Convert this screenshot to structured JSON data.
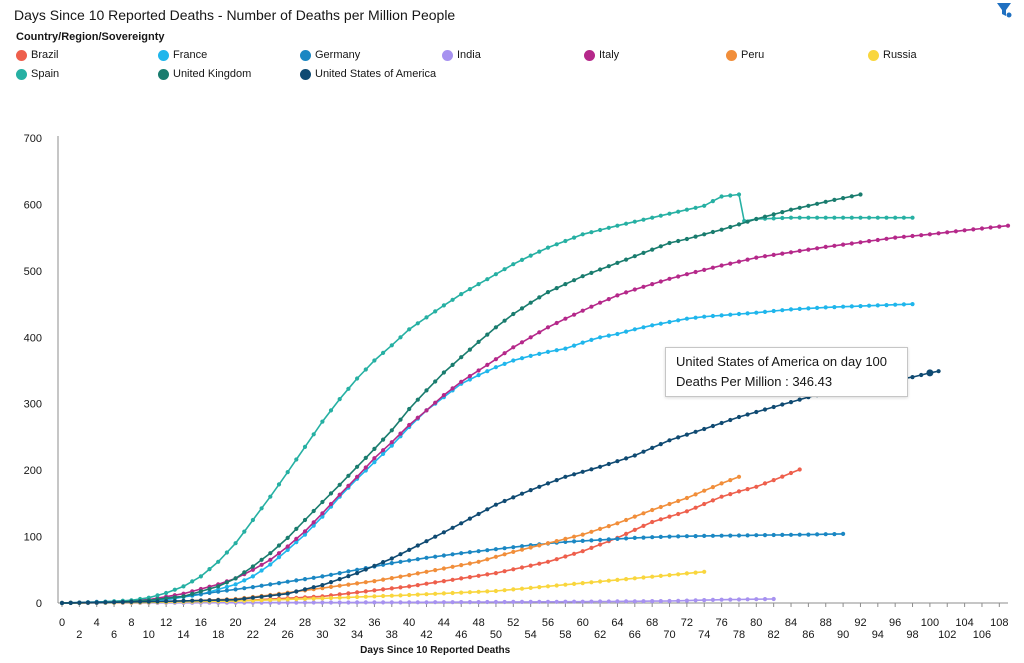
{
  "title": "Days Since 10 Reported Deaths - Number of Deaths per Million People",
  "legend_title": "Country/Region/Sovereignty",
  "tooltip": {
    "line1": "United States of America on day 100",
    "line2": "Deaths Per Million : 346.43"
  },
  "chart_data": {
    "type": "line",
    "title": "Days Since 10 Reported Deaths - Number of Deaths per Million People",
    "xlabel": "Days Since 10 Reported Deaths",
    "ylabel": "",
    "xlim": [
      0,
      109
    ],
    "ylim": [
      0,
      700
    ],
    "yticks": [
      0,
      100,
      200,
      300,
      400,
      500,
      600,
      700
    ],
    "xticks": [
      0,
      2,
      4,
      6,
      8,
      10,
      12,
      14,
      16,
      18,
      20,
      22,
      24,
      26,
      28,
      30,
      32,
      34,
      36,
      38,
      40,
      42,
      44,
      46,
      48,
      50,
      52,
      54,
      56,
      58,
      60,
      62,
      64,
      66,
      68,
      70,
      72,
      74,
      76,
      78,
      80,
      82,
      84,
      86,
      88,
      90,
      92,
      94,
      96,
      98,
      100,
      102,
      104,
      106,
      108
    ],
    "series": [
      {
        "name": "Brazil",
        "color": "#ee5f4c",
        "points": [
          [
            0,
            0
          ],
          [
            10,
            1
          ],
          [
            20,
            3
          ],
          [
            30,
            10
          ],
          [
            40,
            25
          ],
          [
            50,
            45
          ],
          [
            56,
            62
          ],
          [
            60,
            78
          ],
          [
            64,
            98
          ],
          [
            68,
            122
          ],
          [
            72,
            138
          ],
          [
            76,
            160
          ],
          [
            78,
            168
          ],
          [
            80,
            175
          ],
          [
            82,
            185
          ],
          [
            85,
            201
          ]
        ]
      },
      {
        "name": "France",
        "color": "#1fb6ec",
        "points": [
          [
            0,
            0
          ],
          [
            8,
            2
          ],
          [
            12,
            5
          ],
          [
            16,
            13
          ],
          [
            20,
            28
          ],
          [
            22,
            40
          ],
          [
            24,
            58
          ],
          [
            26,
            80
          ],
          [
            28,
            103
          ],
          [
            30,
            130
          ],
          [
            32,
            160
          ],
          [
            34,
            187
          ],
          [
            36,
            212
          ],
          [
            38,
            237
          ],
          [
            40,
            265
          ],
          [
            42,
            290
          ],
          [
            44,
            310
          ],
          [
            46,
            330
          ],
          [
            48,
            343
          ],
          [
            50,
            355
          ],
          [
            52,
            365
          ],
          [
            54,
            372
          ],
          [
            56,
            378
          ],
          [
            58,
            383
          ],
          [
            60,
            392
          ],
          [
            62,
            400
          ],
          [
            64,
            405
          ],
          [
            66,
            412
          ],
          [
            68,
            418
          ],
          [
            70,
            423
          ],
          [
            72,
            428
          ],
          [
            74,
            431
          ],
          [
            76,
            433
          ],
          [
            80,
            437
          ],
          [
            84,
            442
          ],
          [
            88,
            445
          ],
          [
            92,
            447
          ],
          [
            96,
            449
          ],
          [
            98,
            450
          ]
        ]
      },
      {
        "name": "Germany",
        "color": "#1a87c3",
        "points": [
          [
            0,
            0
          ],
          [
            5,
            2
          ],
          [
            10,
            5
          ],
          [
            14,
            10
          ],
          [
            18,
            17
          ],
          [
            22,
            24
          ],
          [
            26,
            32
          ],
          [
            30,
            40
          ],
          [
            34,
            50
          ],
          [
            38,
            60
          ],
          [
            42,
            68
          ],
          [
            46,
            75
          ],
          [
            50,
            81
          ],
          [
            54,
            87
          ],
          [
            58,
            92
          ],
          [
            62,
            95
          ],
          [
            66,
            98
          ],
          [
            70,
            100
          ],
          [
            74,
            101
          ],
          [
            80,
            102
          ],
          [
            86,
            103
          ],
          [
            90,
            104
          ]
        ]
      },
      {
        "name": "India",
        "color": "#a792f0",
        "points": [
          [
            0,
            0
          ],
          [
            20,
            0.5
          ],
          [
            40,
            1
          ],
          [
            60,
            2
          ],
          [
            70,
            3
          ],
          [
            76,
            5
          ],
          [
            82,
            6
          ]
        ]
      },
      {
        "name": "Italy",
        "color": "#b5288a",
        "points": [
          [
            0,
            0
          ],
          [
            6,
            1
          ],
          [
            10,
            5
          ],
          [
            14,
            14
          ],
          [
            18,
            28
          ],
          [
            20,
            37
          ],
          [
            22,
            50
          ],
          [
            24,
            65
          ],
          [
            26,
            85
          ],
          [
            28,
            108
          ],
          [
            30,
            135
          ],
          [
            32,
            163
          ],
          [
            34,
            190
          ],
          [
            36,
            218
          ],
          [
            38,
            242
          ],
          [
            40,
            268
          ],
          [
            42,
            290
          ],
          [
            44,
            313
          ],
          [
            46,
            333
          ],
          [
            48,
            350
          ],
          [
            50,
            367
          ],
          [
            52,
            385
          ],
          [
            54,
            400
          ],
          [
            56,
            415
          ],
          [
            58,
            428
          ],
          [
            60,
            440
          ],
          [
            62,
            452
          ],
          [
            64,
            463
          ],
          [
            66,
            472
          ],
          [
            68,
            480
          ],
          [
            70,
            488
          ],
          [
            72,
            495
          ],
          [
            76,
            508
          ],
          [
            80,
            520
          ],
          [
            84,
            528
          ],
          [
            88,
            536
          ],
          [
            92,
            543
          ],
          [
            96,
            550
          ],
          [
            100,
            555
          ],
          [
            104,
            561
          ],
          [
            109,
            568
          ]
        ]
      },
      {
        "name": "Peru",
        "color": "#f18e3a",
        "points": [
          [
            0,
            0
          ],
          [
            10,
            1
          ],
          [
            20,
            6
          ],
          [
            24,
            12
          ],
          [
            28,
            19
          ],
          [
            32,
            26
          ],
          [
            36,
            33
          ],
          [
            40,
            42
          ],
          [
            44,
            52
          ],
          [
            48,
            62
          ],
          [
            52,
            77
          ],
          [
            56,
            90
          ],
          [
            60,
            103
          ],
          [
            64,
            120
          ],
          [
            68,
            140
          ],
          [
            72,
            158
          ],
          [
            76,
            180
          ],
          [
            78,
            190
          ]
        ]
      },
      {
        "name": "Russia",
        "color": "#f9d63d",
        "points": [
          [
            0,
            0
          ],
          [
            10,
            1
          ],
          [
            20,
            3
          ],
          [
            30,
            7
          ],
          [
            40,
            12
          ],
          [
            50,
            18
          ],
          [
            55,
            24
          ],
          [
            60,
            30
          ],
          [
            65,
            36
          ],
          [
            70,
            42
          ],
          [
            74,
            47
          ]
        ]
      },
      {
        "name": "Spain",
        "color": "#26b0a3",
        "points": [
          [
            0,
            0
          ],
          [
            4,
            1
          ],
          [
            8,
            4
          ],
          [
            10,
            8
          ],
          [
            12,
            15
          ],
          [
            14,
            25
          ],
          [
            16,
            40
          ],
          [
            18,
            62
          ],
          [
            20,
            90
          ],
          [
            22,
            125
          ],
          [
            24,
            160
          ],
          [
            26,
            197
          ],
          [
            28,
            235
          ],
          [
            30,
            273
          ],
          [
            32,
            307
          ],
          [
            34,
            338
          ],
          [
            36,
            365
          ],
          [
            38,
            388
          ],
          [
            40,
            412
          ],
          [
            42,
            430
          ],
          [
            44,
            448
          ],
          [
            46,
            465
          ],
          [
            48,
            480
          ],
          [
            50,
            495
          ],
          [
            52,
            510
          ],
          [
            54,
            523
          ],
          [
            56,
            535
          ],
          [
            58,
            545
          ],
          [
            60,
            555
          ],
          [
            64,
            568
          ],
          [
            68,
            580
          ],
          [
            72,
            592
          ],
          [
            74,
            598
          ],
          [
            76,
            612
          ],
          [
            78,
            615
          ],
          [
            78.6,
            575
          ],
          [
            80,
            578
          ],
          [
            84,
            580
          ],
          [
            90,
            580
          ],
          [
            98,
            580
          ]
        ]
      },
      {
        "name": "United Kingdom",
        "color": "#197c6e",
        "points": [
          [
            0,
            0
          ],
          [
            6,
            1
          ],
          [
            10,
            4
          ],
          [
            14,
            10
          ],
          [
            18,
            25
          ],
          [
            20,
            37
          ],
          [
            22,
            55
          ],
          [
            24,
            75
          ],
          [
            26,
            98
          ],
          [
            28,
            125
          ],
          [
            30,
            152
          ],
          [
            32,
            178
          ],
          [
            34,
            205
          ],
          [
            36,
            232
          ],
          [
            38,
            260
          ],
          [
            40,
            292
          ],
          [
            42,
            320
          ],
          [
            44,
            347
          ],
          [
            46,
            370
          ],
          [
            48,
            393
          ],
          [
            50,
            415
          ],
          [
            52,
            435
          ],
          [
            54,
            452
          ],
          [
            56,
            468
          ],
          [
            58,
            480
          ],
          [
            60,
            492
          ],
          [
            62,
            502
          ],
          [
            64,
            512
          ],
          [
            66,
            522
          ],
          [
            68,
            532
          ],
          [
            70,
            542
          ],
          [
            72,
            548
          ],
          [
            76,
            562
          ],
          [
            80,
            578
          ],
          [
            84,
            592
          ],
          [
            88,
            604
          ],
          [
            92,
            615
          ]
        ]
      },
      {
        "name": "United States of America",
        "color": "#0f4a72",
        "points": [
          [
            0,
            0
          ],
          [
            10,
            2
          ],
          [
            20,
            5
          ],
          [
            26,
            14
          ],
          [
            30,
            27
          ],
          [
            34,
            45
          ],
          [
            38,
            67
          ],
          [
            42,
            93
          ],
          [
            46,
            120
          ],
          [
            50,
            148
          ],
          [
            54,
            170
          ],
          [
            58,
            190
          ],
          [
            62,
            205
          ],
          [
            66,
            222
          ],
          [
            70,
            245
          ],
          [
            74,
            262
          ],
          [
            78,
            280
          ],
          [
            82,
            295
          ],
          [
            86,
            310
          ],
          [
            90,
            322
          ],
          [
            94,
            332
          ],
          [
            98,
            340
          ],
          [
            100,
            346.43
          ],
          [
            101,
            349
          ]
        ]
      }
    ]
  }
}
